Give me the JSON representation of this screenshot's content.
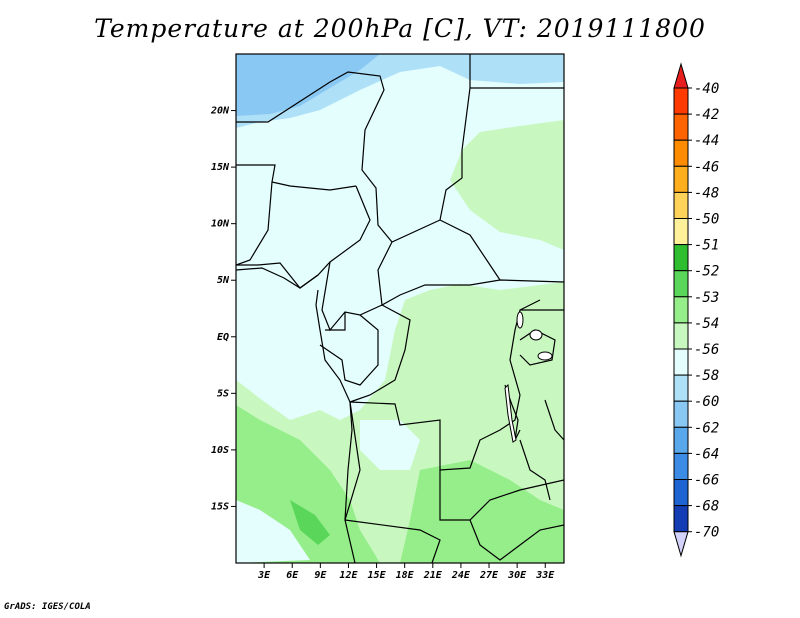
{
  "title": "Temperature at 200hPa [C], VT: 2019111800",
  "credit": "GrADS: IGES/COLA",
  "map": {
    "lon_range": [
      0,
      35
    ],
    "lat_range": [
      -20,
      25
    ],
    "lat_ticks": [
      {
        "value": 20,
        "label": "20N"
      },
      {
        "value": 15,
        "label": "15N"
      },
      {
        "value": 10,
        "label": "10N"
      },
      {
        "value": 5,
        "label": "5N"
      },
      {
        "value": 0,
        "label": "EQ"
      },
      {
        "value": -5,
        "label": "5S"
      },
      {
        "value": -10,
        "label": "10S"
      },
      {
        "value": -15,
        "label": "15S"
      }
    ],
    "lon_ticks": [
      {
        "value": 3,
        "label": "3E"
      },
      {
        "value": 6,
        "label": "6E"
      },
      {
        "value": 9,
        "label": "9E"
      },
      {
        "value": 12,
        "label": "12E"
      },
      {
        "value": 15,
        "label": "15E"
      },
      {
        "value": 18,
        "label": "18E"
      },
      {
        "value": 21,
        "label": "21E"
      },
      {
        "value": 24,
        "label": "24E"
      },
      {
        "value": 27,
        "label": "27E"
      },
      {
        "value": 30,
        "label": "30E"
      },
      {
        "value": 33,
        "label": "33E"
      }
    ]
  },
  "colorbar": {
    "levels": [
      {
        "label": "-40",
        "color": "#ff3a00"
      },
      {
        "label": "-42",
        "color": "#ff6400"
      },
      {
        "label": "-44",
        "color": "#ff8c00"
      },
      {
        "label": "-46",
        "color": "#ffaf1e"
      },
      {
        "label": "-48",
        "color": "#ffd25a"
      },
      {
        "label": "-50",
        "color": "#fff09a"
      },
      {
        "label": "-51",
        "color": "#2fbe2f"
      },
      {
        "label": "-52",
        "color": "#5ad75a"
      },
      {
        "label": "-53",
        "color": "#96ee8a"
      },
      {
        "label": "-54",
        "color": "#c8f8c0"
      },
      {
        "label": "-56",
        "color": "#e4fdfd"
      },
      {
        "label": "-58",
        "color": "#aee0f8"
      },
      {
        "label": "-60",
        "color": "#8ac8f4"
      },
      {
        "label": "-62",
        "color": "#5aa8ec"
      },
      {
        "label": "-64",
        "color": "#3c8ce6"
      },
      {
        "label": "-66",
        "color": "#1e64d2"
      },
      {
        "label": "-68",
        "color": "#143cb4"
      },
      {
        "label": "-70",
        "color": "#0a1478"
      }
    ],
    "top_color": "#e61e1e",
    "bottom_color": "#d2d2fa"
  }
}
